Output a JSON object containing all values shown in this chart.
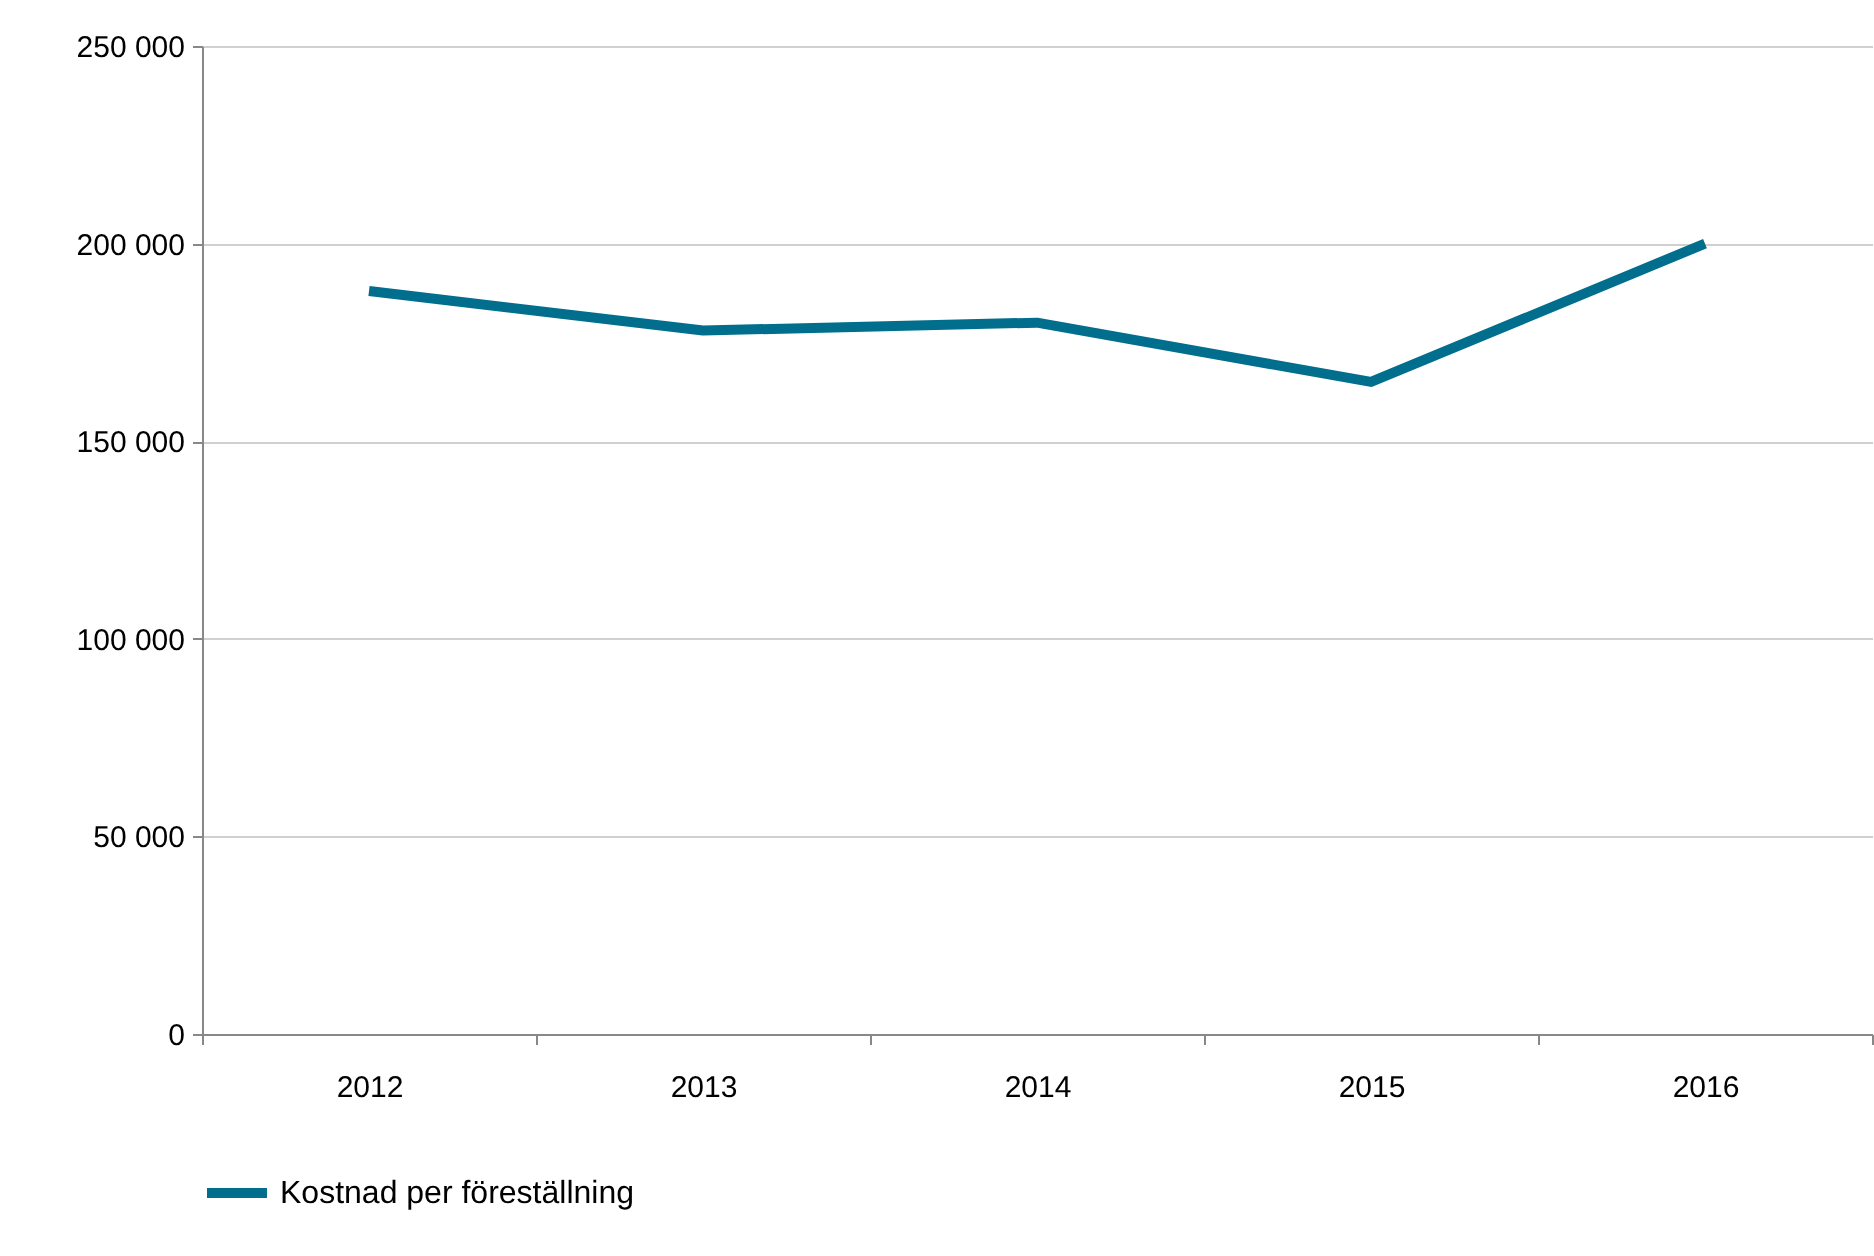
{
  "chart_data": {
    "type": "line",
    "categories": [
      "2012",
      "2013",
      "2014",
      "2015",
      "2016"
    ],
    "series": [
      {
        "name": "Kostnad per föreställning",
        "color": "#006e8c",
        "values": [
          188000,
          178000,
          180000,
          165000,
          200000
        ]
      }
    ],
    "ylim": [
      0,
      250000
    ],
    "yticks": [
      {
        "value": 0,
        "label": "0"
      },
      {
        "value": 50000,
        "label": "50 000"
      },
      {
        "value": 100000,
        "label": "100 000"
      },
      {
        "value": 150000,
        "label": "150 000"
      },
      {
        "value": 200000,
        "label": "200 000"
      },
      {
        "value": 250000,
        "label": "250 000"
      }
    ],
    "grid": "y",
    "legend": "bottom",
    "marker": "none",
    "line_style": "solid"
  }
}
